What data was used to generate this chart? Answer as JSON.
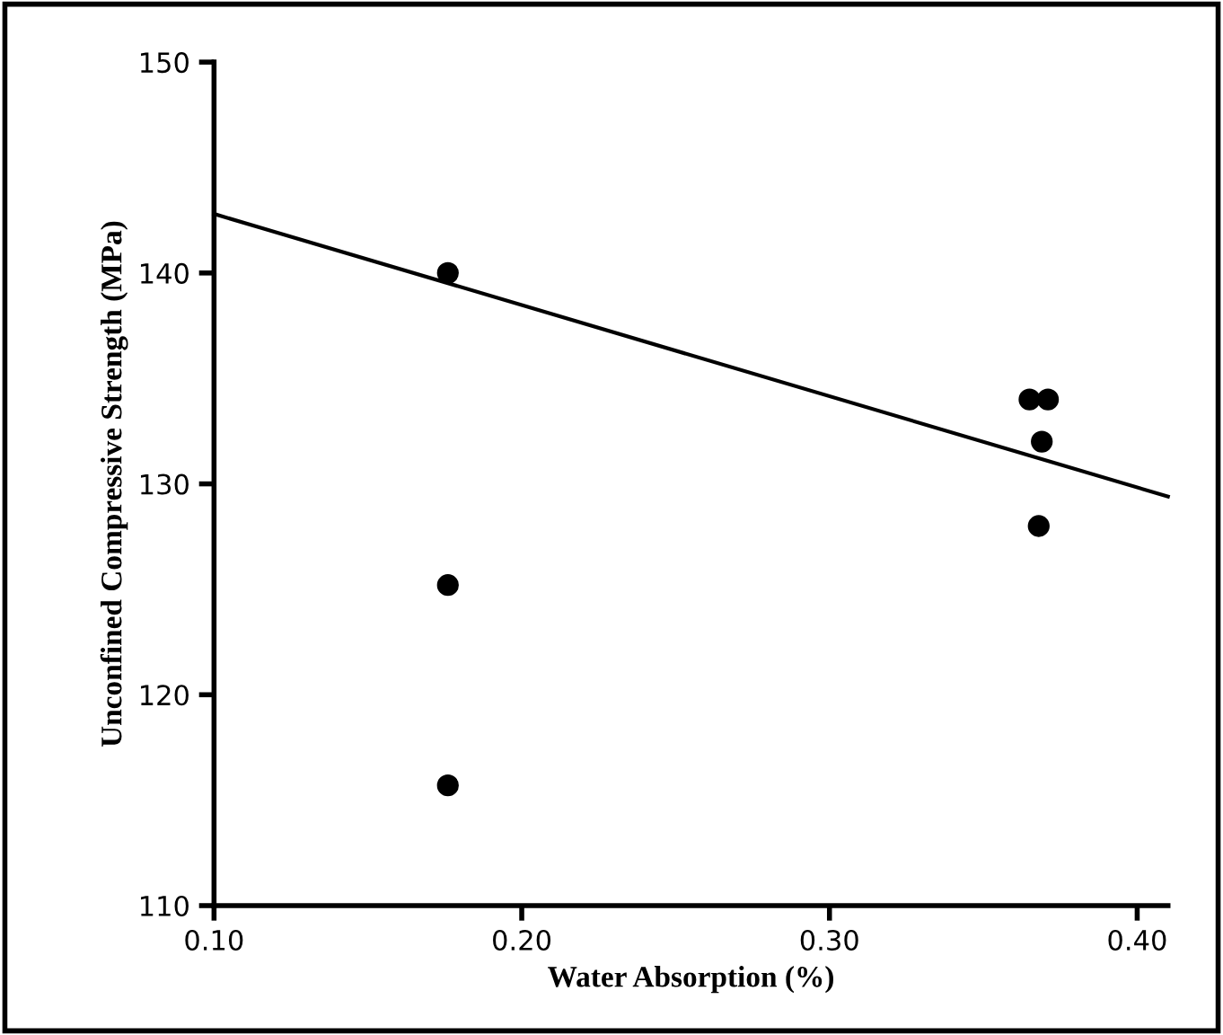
{
  "chart_data": {
    "type": "scatter",
    "xlabel": "Water Absorption (%)",
    "ylabel": "Unconfined Compressive Strength (MPa)",
    "x": [
      0.176,
      0.176,
      0.176,
      0.365,
      0.371,
      0.369,
      0.368
    ],
    "series": [
      {
        "color": "#000000",
        "values": [
          140,
          125.2,
          115.7,
          134,
          134,
          132,
          128
        ],
        "marker": "circle"
      },
      {
        "type": "line",
        "color": "#000000",
        "x": [
          0.1,
          0.41
        ],
        "values": [
          142.8,
          129.4
        ],
        "marker": "none"
      }
    ],
    "xlim": [
      0.1,
      0.41
    ],
    "ylim": [
      110,
      150
    ],
    "xticks": [
      {
        "value": 0.1,
        "label": "0.10"
      },
      {
        "value": 0.2,
        "label": "0.20"
      },
      {
        "value": 0.3,
        "label": "0.30"
      },
      {
        "value": 0.4,
        "label": "0.40"
      }
    ],
    "yticks": [
      110,
      120,
      130,
      140,
      150
    ],
    "grid": false,
    "legend": false
  }
}
